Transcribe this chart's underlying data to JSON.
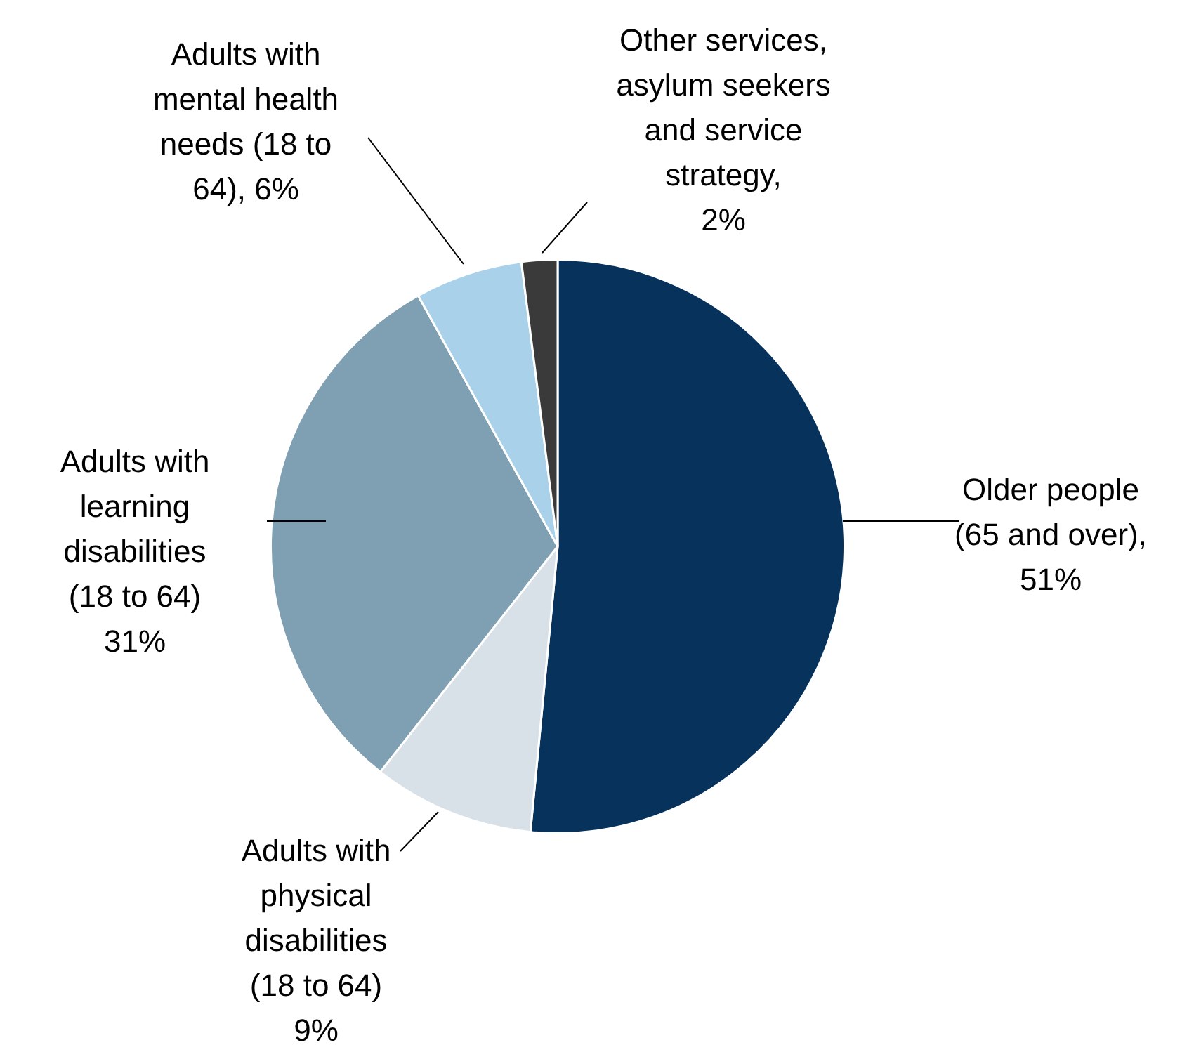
{
  "chart_data": {
    "type": "pie",
    "categories": [
      "Older people (65 and over)",
      "Adults with physical disabilities (18 to 64)",
      "Adults with learning disabilities (18 to 64)",
      "Adults with mental health needs (18 to 64)",
      "Other services, asylum seekers and service strategy"
    ],
    "values": [
      51,
      9,
      31,
      6,
      2
    ],
    "value_labels": [
      ", 51%",
      " 9%",
      " 31%",
      ", 6%",
      ", 2%"
    ],
    "colors": [
      "#07325c",
      "#d9e1e8",
      "#7f9fb2",
      "#a9d1ea",
      "#3a3a3a"
    ],
    "legend": false
  }
}
